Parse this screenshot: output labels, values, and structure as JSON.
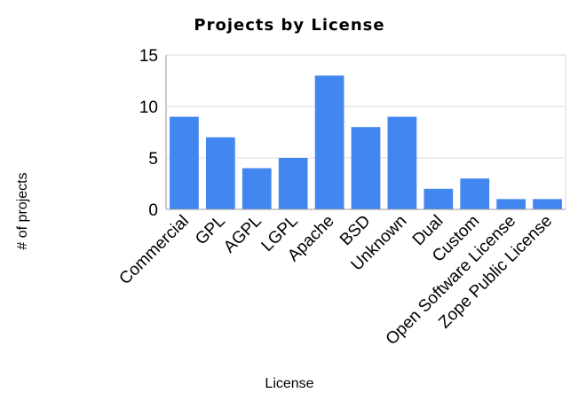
{
  "chart_data": {
    "type": "bar",
    "title": "Projects by License",
    "xlabel": "License",
    "ylabel": "# of projects",
    "categories": [
      "Commercial",
      "GPL",
      "AGPL",
      "LGPL",
      "Apache",
      "BSD",
      "Unknown",
      "Dual",
      "Custom",
      "Open Software License",
      "Zope Public License"
    ],
    "values": [
      9,
      7,
      4,
      5,
      13,
      8,
      9,
      2,
      3,
      1,
      1
    ],
    "ylim": [
      0,
      15
    ],
    "yticks": [
      "0",
      "5",
      "10",
      "15"
    ],
    "grid": true,
    "legend": "none",
    "bar_color": "#4286f0",
    "grid_color": "#dedede",
    "axis_color": "#9a9a9a"
  }
}
